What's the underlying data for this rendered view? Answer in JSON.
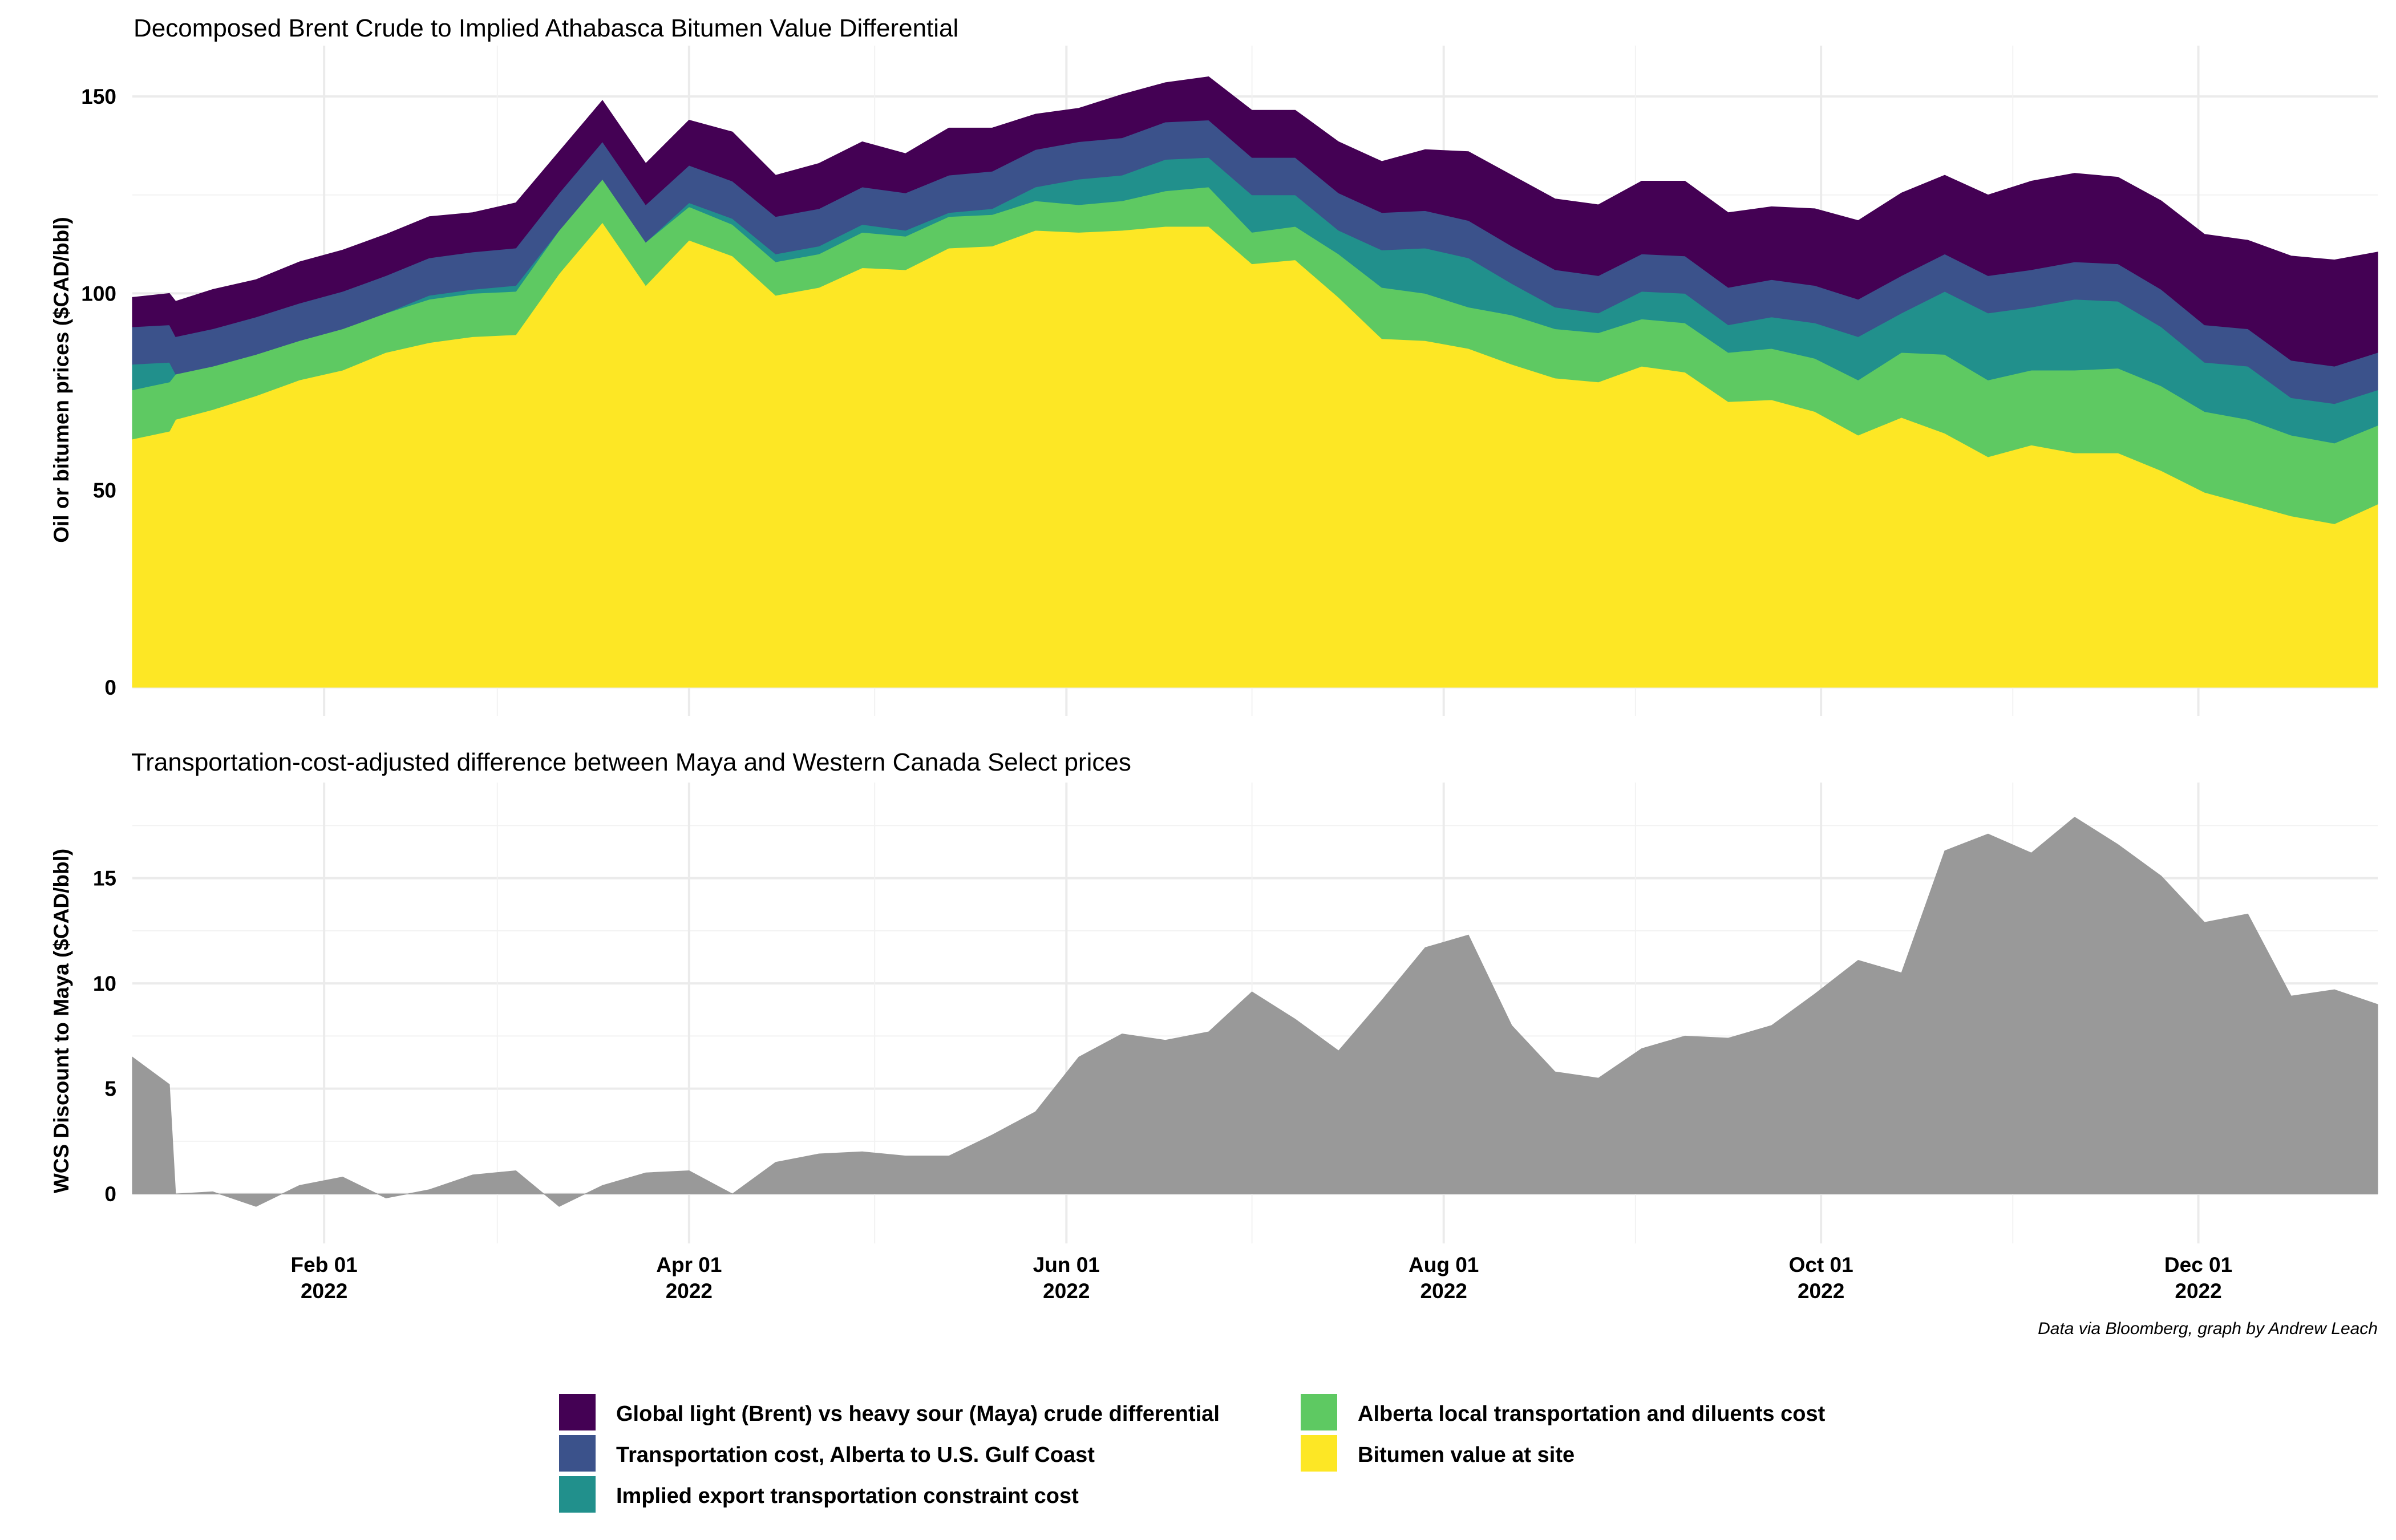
{
  "caption": "Data via Bloomberg, graph by Andrew Leach",
  "x_ticks": [
    {
      "date": "2022-02-01",
      "line1": "Feb 01",
      "line2": "2022"
    },
    {
      "date": "2022-04-01",
      "line1": "Apr 01",
      "line2": "2022"
    },
    {
      "date": "2022-06-01",
      "line1": "Jun 01",
      "line2": "2022"
    },
    {
      "date": "2022-08-01",
      "line1": "Aug 01",
      "line2": "2022"
    },
    {
      "date": "2022-10-01",
      "line1": "Oct 01",
      "line2": "2022"
    },
    {
      "date": "2022-12-01",
      "line1": "Dec 01",
      "line2": "2022"
    }
  ],
  "x_range": [
    "2022-01-01",
    "2022-12-30"
  ],
  "legend": [
    {
      "label": "Global light (Brent) vs heavy sour (Maya) crude differential",
      "color": "#440154",
      "position": "left"
    },
    {
      "label": "Transportation cost, Alberta to U.S. Gulf Coast",
      "color": "#3b528b",
      "position": "left"
    },
    {
      "label": "Implied export transportation constraint cost",
      "color": "#21908c",
      "position": "left"
    },
    {
      "label": "Alberta local transportation and diluents cost",
      "color": "#5ec962",
      "position": "right"
    },
    {
      "label": "Bitumen value at site",
      "color": "#fde725",
      "position": "right"
    }
  ],
  "chart_data": [
    {
      "type": "area",
      "stacked": true,
      "title": "Decomposed Brent Crude to Implied Athabasca Bitumen Value Differential",
      "xlabel": "",
      "ylabel": "Oil or bitumen prices ($CAD/bbl)",
      "ylim": [
        0,
        160
      ],
      "y_ticks": [
        0,
        50,
        100,
        150
      ],
      "grid": true,
      "legend_position": "bottom",
      "x": [
        "2022-01-01",
        "2022-01-07",
        "2022-01-08",
        "2022-01-14",
        "2022-01-21",
        "2022-01-28",
        "2022-02-04",
        "2022-02-11",
        "2022-02-18",
        "2022-02-25",
        "2022-03-04",
        "2022-03-11",
        "2022-03-18",
        "2022-03-25",
        "2022-04-01",
        "2022-04-08",
        "2022-04-15",
        "2022-04-22",
        "2022-04-29",
        "2022-05-06",
        "2022-05-13",
        "2022-05-20",
        "2022-05-27",
        "2022-06-03",
        "2022-06-10",
        "2022-06-17",
        "2022-06-24",
        "2022-07-01",
        "2022-07-08",
        "2022-07-15",
        "2022-07-22",
        "2022-07-29",
        "2022-08-05",
        "2022-08-12",
        "2022-08-19",
        "2022-08-26",
        "2022-09-02",
        "2022-09-09",
        "2022-09-16",
        "2022-09-23",
        "2022-09-30",
        "2022-10-07",
        "2022-10-14",
        "2022-10-21",
        "2022-10-28",
        "2022-11-04",
        "2022-11-11",
        "2022-11-18",
        "2022-11-25",
        "2022-12-02",
        "2022-12-09",
        "2022-12-16",
        "2022-12-23",
        "2022-12-30"
      ],
      "series": [
        {
          "name": "Bitumen value at site",
          "color": "#fde725",
          "values": [
            63,
            65,
            68,
            70.5,
            74,
            78,
            80.5,
            85,
            87.5,
            89,
            89.5,
            105,
            118,
            102,
            113.5,
            109.5,
            99.5,
            101.5,
            106.5,
            106,
            111.5,
            112,
            116,
            115.5,
            116,
            117,
            117,
            107.5,
            108.5,
            99,
            88.5,
            88,
            86,
            82,
            78.5,
            77.5,
            81.5,
            80,
            72.5,
            73,
            70,
            64,
            68.5,
            64.5,
            58.5,
            61.5,
            59.5,
            59.5,
            55,
            49.5,
            46.5,
            43.5,
            41.5,
            46.5
          ]
        },
        {
          "name": "Alberta local transportation and diluents cost",
          "color": "#5ec962",
          "values": [
            12.5,
            12.5,
            11.5,
            11,
            10.5,
            10,
            10.5,
            10,
            11,
            11,
            11,
            11,
            11,
            11,
            8.5,
            8,
            8.5,
            8.5,
            9,
            8.5,
            8,
            8,
            7.5,
            7,
            7.5,
            9,
            10,
            8,
            8.5,
            11,
            13,
            12,
            10.5,
            12.5,
            12.5,
            12.5,
            12,
            12.5,
            12.5,
            13,
            13.5,
            14,
            16.5,
            20,
            19.5,
            19,
            21,
            21.5,
            21.5,
            20.5,
            21.5,
            20.5,
            20.5,
            20
          ]
        },
        {
          "name": "Implied export transportation constraint cost",
          "color": "#21908c",
          "values": [
            6.5,
            5,
            0,
            0,
            0,
            0,
            0,
            0,
            1,
            1,
            1.5,
            0,
            0,
            0,
            1,
            1.5,
            2,
            2,
            2,
            1.5,
            1,
            1.5,
            3.5,
            6.5,
            6.5,
            8,
            7.5,
            9.5,
            8,
            6,
            9.5,
            11.5,
            12.5,
            8,
            5.5,
            5,
            7,
            7.5,
            7,
            8,
            9,
            11,
            10,
            16,
            17,
            16,
            18,
            17,
            15,
            12.5,
            13.5,
            9.5,
            10,
            9
          ]
        },
        {
          "name": "Transportation cost, Alberta to U.S. Gulf Coast",
          "color": "#3b528b",
          "values": [
            9.5,
            9.5,
            9.5,
            9.5,
            9.5,
            9.5,
            9.5,
            9.5,
            9.5,
            9.5,
            9.5,
            9.5,
            9.5,
            9.5,
            9.5,
            9.5,
            9.5,
            9.5,
            9.5,
            9.5,
            9.5,
            9.5,
            9.5,
            9.5,
            9.5,
            9.5,
            9.5,
            9.5,
            9.5,
            9.5,
            9.5,
            9.5,
            9.5,
            9.5,
            9.5,
            9.5,
            9.5,
            9.5,
            9.5,
            9.5,
            9.5,
            9.5,
            9.5,
            9.5,
            9.5,
            9.5,
            9.5,
            9.5,
            9.5,
            9.5,
            9.5,
            9.5,
            9.5,
            9.5
          ]
        },
        {
          "name": "Global light (Brent) vs heavy sour (Maya) crude differential",
          "color": "#440154",
          "values": [
            7.5,
            8,
            9,
            10,
            9.5,
            10.5,
            10.5,
            10.5,
            10.5,
            10,
            11.5,
            10.5,
            10.5,
            10.5,
            11.5,
            12.5,
            10.5,
            11.5,
            11.5,
            10,
            12,
            11,
            9,
            8.5,
            11,
            10,
            11,
            12,
            12,
            13,
            13,
            15.5,
            17.5,
            18,
            18,
            18,
            18.5,
            19,
            19,
            18.5,
            19.5,
            20,
            21,
            20,
            20.5,
            22.5,
            22.5,
            22,
            22.5,
            23,
            22.5,
            26.5,
            27,
            25.5
          ]
        }
      ]
    },
    {
      "type": "area",
      "title": "Transportation-cost-adjusted difference between Maya and Western Canada Select prices",
      "xlabel": "",
      "ylabel": "WCS Discount to Maya ($CAD/bbl)",
      "ylim": [
        -1,
        19
      ],
      "y_ticks": [
        0,
        5,
        10,
        15
      ],
      "grid": true,
      "fill_color": "#999999",
      "x": [
        "2022-01-01",
        "2022-01-07",
        "2022-01-08",
        "2022-01-14",
        "2022-01-21",
        "2022-01-28",
        "2022-02-04",
        "2022-02-11",
        "2022-02-18",
        "2022-02-25",
        "2022-03-04",
        "2022-03-11",
        "2022-03-18",
        "2022-03-25",
        "2022-04-01",
        "2022-04-08",
        "2022-04-15",
        "2022-04-22",
        "2022-04-29",
        "2022-05-06",
        "2022-05-13",
        "2022-05-20",
        "2022-05-27",
        "2022-06-03",
        "2022-06-10",
        "2022-06-17",
        "2022-06-24",
        "2022-07-01",
        "2022-07-08",
        "2022-07-15",
        "2022-07-22",
        "2022-07-29",
        "2022-08-05",
        "2022-08-12",
        "2022-08-19",
        "2022-08-26",
        "2022-09-02",
        "2022-09-09",
        "2022-09-16",
        "2022-09-23",
        "2022-09-30",
        "2022-10-07",
        "2022-10-14",
        "2022-10-21",
        "2022-10-28",
        "2022-11-04",
        "2022-11-11",
        "2022-11-18",
        "2022-11-25",
        "2022-12-02",
        "2022-12-09",
        "2022-12-16",
        "2022-12-23",
        "2022-12-30"
      ],
      "values": [
        6.5,
        5.2,
        0,
        0.1,
        -0.6,
        0.4,
        0.8,
        -0.2,
        0.2,
        0.9,
        1.1,
        -0.6,
        0.4,
        1,
        1.1,
        0,
        1.5,
        1.9,
        2,
        1.8,
        1.8,
        2.8,
        3.9,
        6.5,
        7.6,
        7.3,
        7.7,
        9.6,
        8.3,
        6.8,
        9.2,
        11.7,
        12.3,
        8,
        5.8,
        5.5,
        6.9,
        7.5,
        7.4,
        8,
        9.5,
        11.1,
        10.5,
        16.3,
        17.1,
        16.2,
        17.9,
        16.6,
        15.1,
        12.9,
        13.3,
        9.4,
        9.7,
        9
      ]
    }
  ]
}
